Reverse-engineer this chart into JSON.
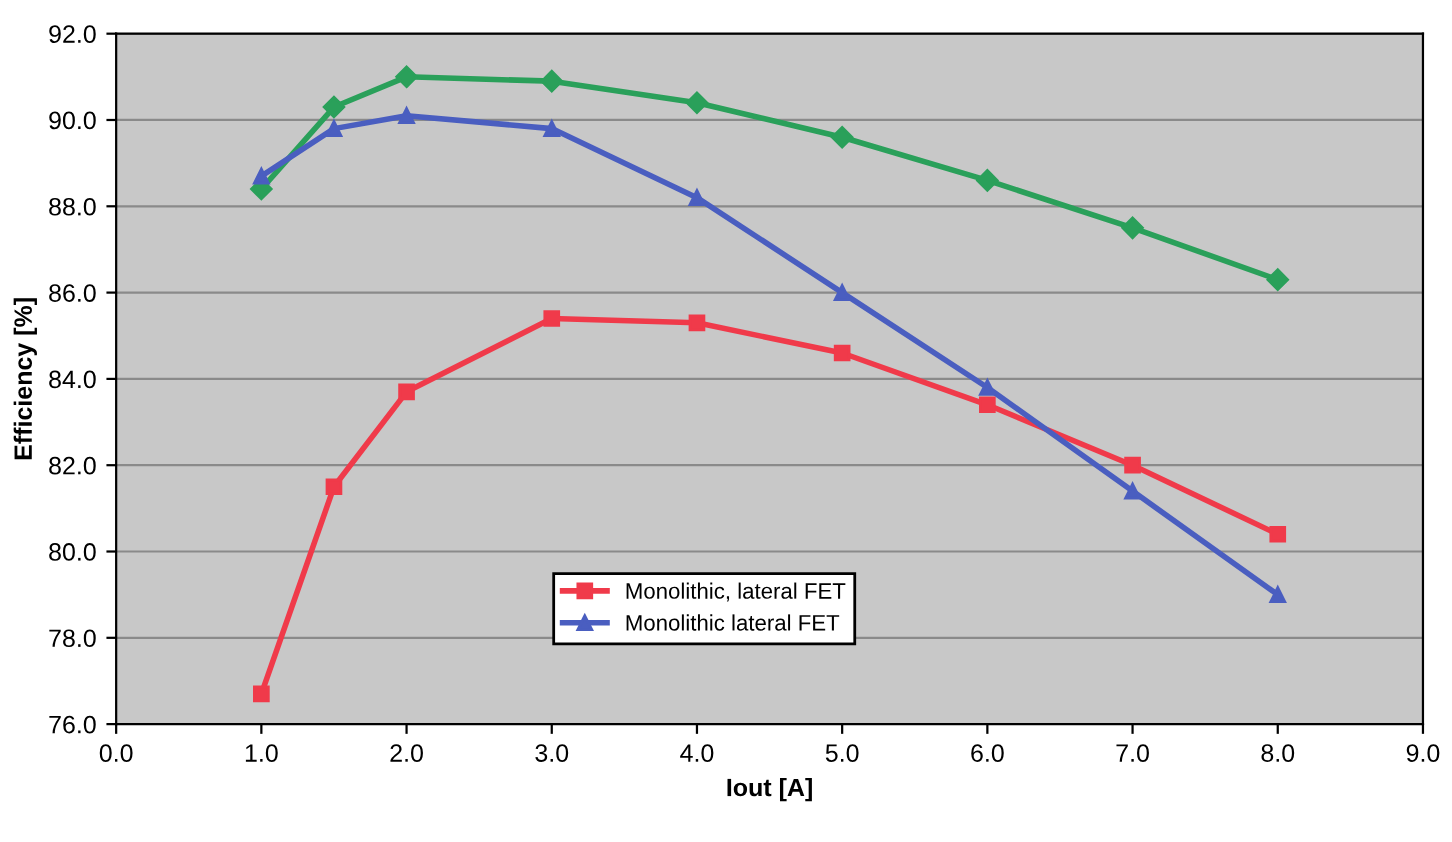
{
  "chart_data": {
    "type": "line",
    "xlabel": "Iout [A]",
    "ylabel": "Efficiency [%]",
    "x": [
      1,
      1.5,
      2,
      3,
      4,
      5,
      6,
      7,
      8
    ],
    "series": [
      {
        "color": "#2aa05a",
        "marker": "diamond",
        "values": [
          88.4,
          90.3,
          91.0,
          90.9,
          90.4,
          89.6,
          88.6,
          87.5,
          86.3
        ]
      },
      {
        "name": "Monolithic, lateral FET",
        "color": "#f03a4a",
        "marker": "square",
        "values": [
          76.7,
          81.5,
          83.7,
          85.4,
          85.3,
          84.6,
          83.4,
          82.0,
          80.4
        ]
      },
      {
        "name": "Monolithic lateral FET",
        "color": "#4a5ec0",
        "marker": "triangle",
        "values": [
          88.7,
          89.8,
          90.1,
          89.8,
          88.2,
          86.0,
          83.8,
          81.4,
          79.0
        ]
      }
    ],
    "xlim": [
      0,
      9
    ],
    "xticks": [
      {
        "value": 0,
        "label": "0.0"
      },
      {
        "value": 1,
        "label": "1.0"
      },
      {
        "value": 2,
        "label": "2.0"
      },
      {
        "value": 3,
        "label": "3.0"
      },
      {
        "value": 4,
        "label": "4.0"
      },
      {
        "value": 5,
        "label": "5.0"
      },
      {
        "value": 6,
        "label": "6.0"
      },
      {
        "value": 7,
        "label": "7.0"
      },
      {
        "value": 8,
        "label": "8.0"
      },
      {
        "value": 9,
        "label": "9.0"
      }
    ],
    "ylim": [
      76,
      92
    ],
    "yticks": [
      {
        "value": 76,
        "label": "76.0"
      },
      {
        "value": 78,
        "label": "78.0"
      },
      {
        "value": 80,
        "label": "80.0"
      },
      {
        "value": 82,
        "label": "82.0"
      },
      {
        "value": 84,
        "label": "84.0"
      },
      {
        "value": 86,
        "label": "86.0"
      },
      {
        "value": 88,
        "label": "88.0"
      },
      {
        "value": 90,
        "label": "90.0"
      },
      {
        "value": 92,
        "label": "92.0"
      }
    ],
    "grid": "y",
    "legend": "bottom",
    "line_style": "solid"
  }
}
